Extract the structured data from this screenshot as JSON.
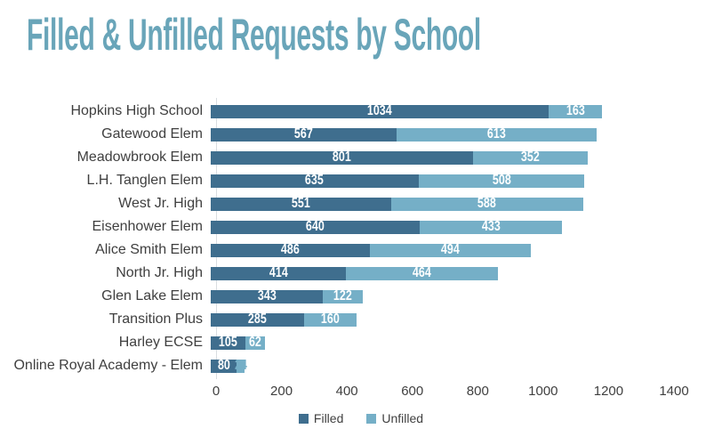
{
  "title": "Filled & Unfilled Requests by School",
  "colors": {
    "title": "#69a5b9",
    "filled": "#3f6e8e",
    "unfilled": "#75afc7",
    "category_text": "#3f3f3f",
    "tick_text": "#404040",
    "value_text": "#ffffff",
    "axis_line": "#d9dde1",
    "background": "#ffffff"
  },
  "chart_data": {
    "type": "bar",
    "orientation": "horizontal",
    "stacked": true,
    "title": "Filled & Unfilled Requests by School",
    "categories": [
      "Hopkins High School",
      "Gatewood Elem",
      "Meadowbrook Elem",
      "L.H. Tanglen Elem",
      "West Jr. High",
      "Eisenhower Elem",
      "Alice Smith Elem",
      "North Jr. High",
      "Glen Lake Elem",
      "Transition Plus",
      "Harley ECSE",
      "Online Royal Academy - Elem"
    ],
    "series": [
      {
        "name": "Filled",
        "color": "#3f6e8e",
        "values": [
          1034,
          567,
          801,
          635,
          551,
          640,
          486,
          414,
          343,
          285,
          105,
          80
        ]
      },
      {
        "name": "Unfilled",
        "color": "#75afc7",
        "values": [
          163,
          613,
          352,
          508,
          588,
          433,
          494,
          464,
          122,
          160,
          62,
          24
        ]
      }
    ],
    "x_ticks": [
      0,
      200,
      400,
      600,
      800,
      1000,
      1200,
      1400
    ],
    "xlim": [
      0,
      1400
    ],
    "xlabel": "",
    "ylabel": "",
    "grid": false,
    "legend_position": "bottom",
    "data_labels": true
  },
  "legend": {
    "items": [
      {
        "label": "Filled",
        "color": "#3f6e8e"
      },
      {
        "label": "Unfilled",
        "color": "#75afc7"
      }
    ]
  }
}
